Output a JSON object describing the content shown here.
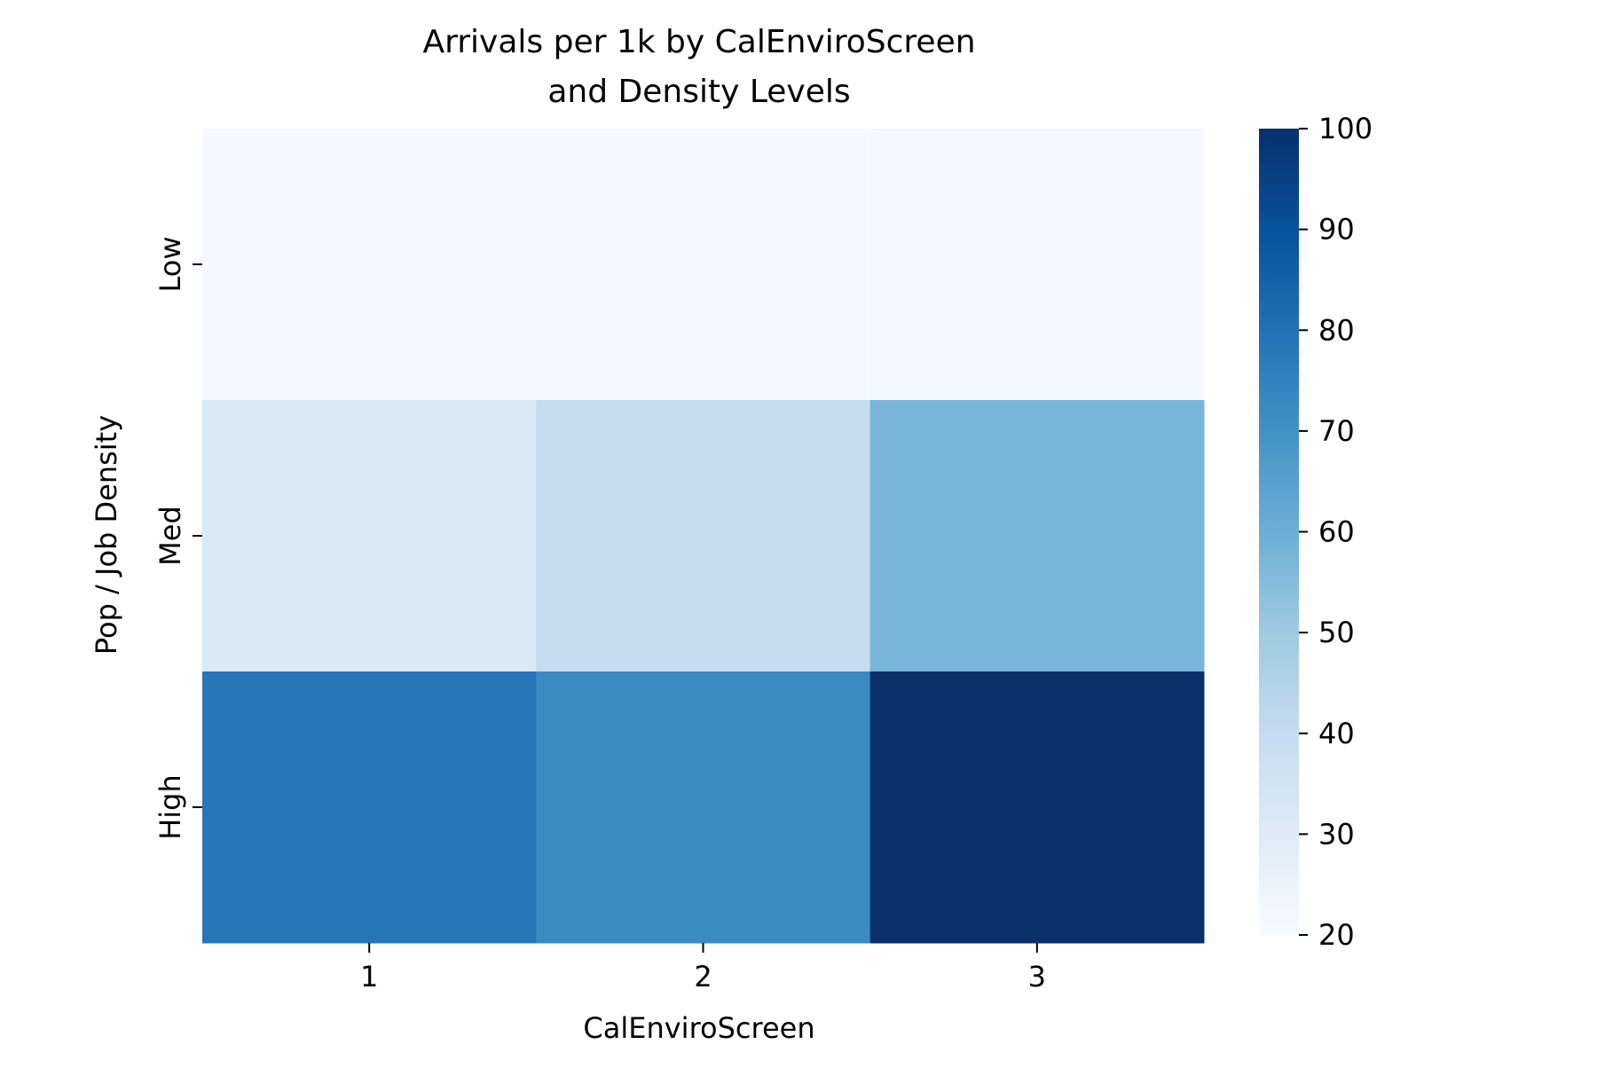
{
  "chart_data": {
    "type": "heatmap",
    "title_lines": [
      "Arrivals per 1k by CalEnviroScreen",
      "and Density Levels"
    ],
    "xlabel": "CalEnviroScreen",
    "ylabel": "Pop / Job Density",
    "x_categories": [
      "1",
      "2",
      "3"
    ],
    "y_categories": [
      "Low",
      "Med",
      "High"
    ],
    "values": [
      [
        20.5,
        20.5,
        21.5
      ],
      [
        31.5,
        39.5,
        57.5
      ],
      [
        78.5,
        72.0,
        100.0
      ]
    ],
    "colorbar": {
      "min": 20,
      "max": 100,
      "ticks": [
        "20",
        "30",
        "40",
        "50",
        "60",
        "70",
        "80",
        "90",
        "100"
      ],
      "colormap": "Blues"
    },
    "colormap_stops": [
      "#f7fbff",
      "#deebf7",
      "#c6dbef",
      "#9ecae1",
      "#6baed6",
      "#4292c6",
      "#2171b5",
      "#08519c",
      "#08306b"
    ]
  }
}
